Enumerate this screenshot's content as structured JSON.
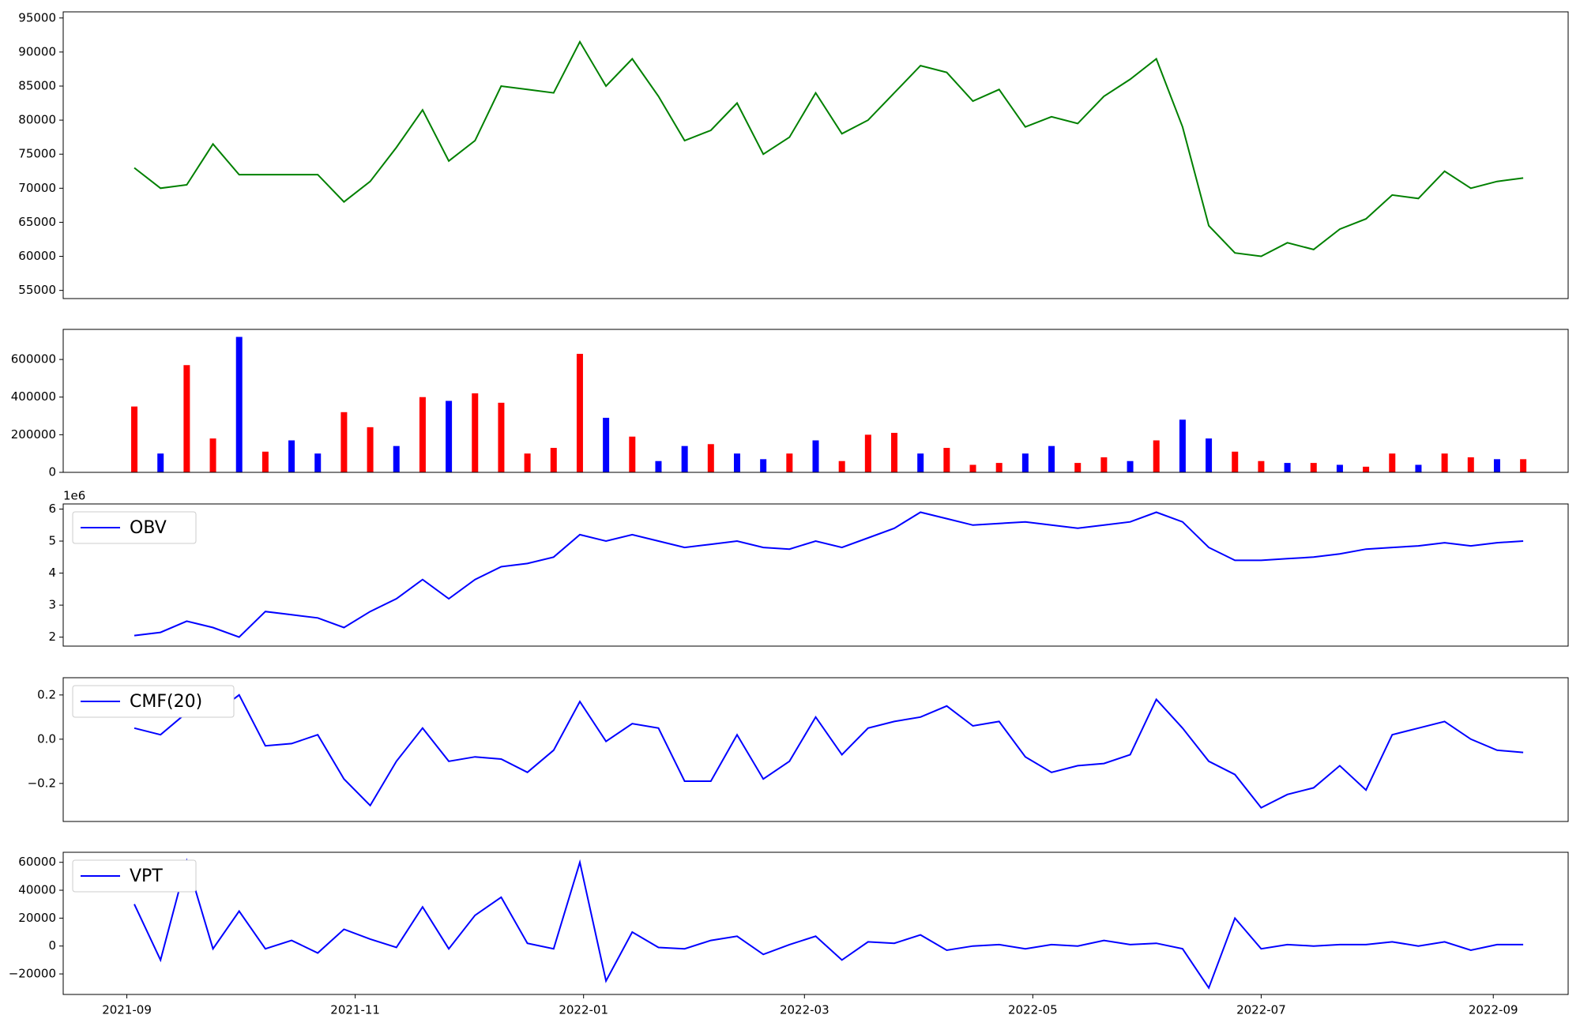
{
  "chart_data": [
    {
      "type": "line",
      "color": "#008000",
      "x": [
        "2021-09-03",
        "2021-09-10",
        "2021-09-17",
        "2021-09-24",
        "2021-10-01",
        "2021-10-08",
        "2021-10-15",
        "2021-10-22",
        "2021-10-29",
        "2021-11-05",
        "2021-11-12",
        "2021-11-19",
        "2021-11-26",
        "2021-12-03",
        "2021-12-10",
        "2021-12-17",
        "2021-12-24",
        "2021-12-31",
        "2022-01-07",
        "2022-01-14",
        "2022-01-21",
        "2022-01-28",
        "2022-02-04",
        "2022-02-11",
        "2022-02-18",
        "2022-02-25",
        "2022-03-04",
        "2022-03-11",
        "2022-03-18",
        "2022-03-25",
        "2022-04-01",
        "2022-04-08",
        "2022-04-15",
        "2022-04-22",
        "2022-04-29",
        "2022-05-06",
        "2022-05-13",
        "2022-05-20",
        "2022-05-27",
        "2022-06-03",
        "2022-06-10",
        "2022-06-17",
        "2022-06-24",
        "2022-07-01",
        "2022-07-08",
        "2022-07-15",
        "2022-07-22",
        "2022-07-29",
        "2022-08-05",
        "2022-08-12",
        "2022-08-19",
        "2022-08-26",
        "2022-09-02",
        "2022-09-09"
      ],
      "values": [
        73000,
        70000,
        70500,
        76500,
        72000,
        72000,
        72000,
        72000,
        68000,
        71000,
        76000,
        81500,
        74000,
        77000,
        85000,
        84500,
        84000,
        91500,
        85000,
        89000,
        83500,
        77000,
        78500,
        82500,
        75000,
        77500,
        84000,
        78000,
        80000,
        84000,
        88000,
        87000,
        82800,
        84500,
        79000,
        80500,
        79500,
        83500,
        86000,
        89000,
        79000,
        64500,
        60500,
        60000,
        62000,
        61000,
        64000,
        65500,
        69000,
        68500,
        72500,
        70000,
        71000,
        71500
      ],
      "xlim": [
        "2021-08-15",
        "2022-09-21"
      ],
      "ylim": [
        53800,
        95900
      ],
      "yticks": [
        55000,
        60000,
        65000,
        70000,
        75000,
        80000,
        85000,
        90000,
        95000
      ]
    },
    {
      "type": "bar",
      "x": [
        "2021-09-03",
        "2021-09-10",
        "2021-09-17",
        "2021-09-24",
        "2021-10-01",
        "2021-10-08",
        "2021-10-15",
        "2021-10-22",
        "2021-10-29",
        "2021-11-05",
        "2021-11-12",
        "2021-11-19",
        "2021-11-26",
        "2021-12-03",
        "2021-12-10",
        "2021-12-17",
        "2021-12-24",
        "2021-12-31",
        "2022-01-07",
        "2022-01-14",
        "2022-01-21",
        "2022-01-28",
        "2022-02-04",
        "2022-02-11",
        "2022-02-18",
        "2022-02-25",
        "2022-03-04",
        "2022-03-11",
        "2022-03-18",
        "2022-03-25",
        "2022-04-01",
        "2022-04-08",
        "2022-04-15",
        "2022-04-22",
        "2022-04-29",
        "2022-05-06",
        "2022-05-13",
        "2022-05-20",
        "2022-05-27",
        "2022-06-03",
        "2022-06-10",
        "2022-06-17",
        "2022-06-24",
        "2022-07-01",
        "2022-07-08",
        "2022-07-15",
        "2022-07-22",
        "2022-07-29",
        "2022-08-05",
        "2022-08-12",
        "2022-08-19",
        "2022-08-26",
        "2022-09-02",
        "2022-09-09"
      ],
      "values": [
        350000,
        100000,
        570000,
        180000,
        720000,
        110000,
        170000,
        100000,
        320000,
        240000,
        140000,
        400000,
        380000,
        420000,
        370000,
        100000,
        130000,
        630000,
        290000,
        190000,
        60000,
        140000,
        150000,
        100000,
        70000,
        100000,
        170000,
        60000,
        200000,
        210000,
        100000,
        130000,
        40000,
        50000,
        100000,
        140000,
        50000,
        80000,
        60000,
        170000,
        280000,
        180000,
        110000,
        60000,
        50000,
        50000,
        40000,
        30000,
        100000,
        40000,
        100000,
        80000,
        70000,
        70000
      ],
      "colors": [
        "red",
        "blue",
        "red",
        "red",
        "blue",
        "red",
        "blue",
        "blue",
        "red",
        "red",
        "blue",
        "red",
        "blue",
        "red",
        "red",
        "red",
        "red",
        "red",
        "blue",
        "red",
        "blue",
        "blue",
        "red",
        "blue",
        "blue",
        "red",
        "blue",
        "red",
        "red",
        "red",
        "blue",
        "red",
        "red",
        "red",
        "blue",
        "blue",
        "red",
        "red",
        "blue",
        "red",
        "blue",
        "blue",
        "red",
        "red",
        "blue",
        "red",
        "blue",
        "red",
        "red",
        "blue",
        "red",
        "red",
        "blue",
        "red"
      ],
      "xlim": [
        "2021-08-15",
        "2022-09-21"
      ],
      "ylim": [
        0,
        760000
      ],
      "yticks": [
        0,
        200000,
        400000,
        600000
      ]
    },
    {
      "type": "line",
      "legend": "upper left",
      "y_offset_label": "1e6",
      "x": [
        "2021-09-03",
        "2021-09-10",
        "2021-09-17",
        "2021-09-24",
        "2021-10-01",
        "2021-10-08",
        "2021-10-15",
        "2021-10-22",
        "2021-10-29",
        "2021-11-05",
        "2021-11-12",
        "2021-11-19",
        "2021-11-26",
        "2021-12-03",
        "2021-12-10",
        "2021-12-17",
        "2021-12-24",
        "2021-12-31",
        "2022-01-07",
        "2022-01-14",
        "2022-01-21",
        "2022-01-28",
        "2022-02-04",
        "2022-02-11",
        "2022-02-18",
        "2022-02-25",
        "2022-03-04",
        "2022-03-11",
        "2022-03-18",
        "2022-03-25",
        "2022-04-01",
        "2022-04-08",
        "2022-04-15",
        "2022-04-22",
        "2022-04-29",
        "2022-05-06",
        "2022-05-13",
        "2022-05-20",
        "2022-05-27",
        "2022-06-03",
        "2022-06-10",
        "2022-06-17",
        "2022-06-24",
        "2022-07-01",
        "2022-07-08",
        "2022-07-15",
        "2022-07-22",
        "2022-07-29",
        "2022-08-05",
        "2022-08-12",
        "2022-08-19",
        "2022-08-26",
        "2022-09-02",
        "2022-09-09"
      ],
      "series": [
        {
          "name": "OBV",
          "color": "#0000ff",
          "values": [
            2.05,
            2.15,
            2.5,
            2.3,
            2.0,
            2.8,
            2.7,
            2.6,
            2.3,
            2.8,
            3.2,
            3.8,
            3.2,
            3.8,
            4.2,
            4.3,
            4.5,
            5.2,
            5.0,
            5.2,
            5.0,
            4.8,
            4.9,
            5.0,
            4.8,
            4.75,
            5.0,
            4.8,
            5.1,
            5.4,
            5.9,
            5.7,
            5.5,
            5.55,
            5.6,
            5.5,
            5.4,
            5.5,
            5.6,
            5.9,
            5.6,
            4.8,
            4.4,
            4.4,
            4.45,
            4.5,
            4.6,
            4.75,
            4.8,
            4.85,
            4.95,
            4.85,
            4.95,
            5.0
          ]
        }
      ],
      "xlim": [
        "2021-08-15",
        "2022-09-21"
      ],
      "ylim": [
        1.72,
        6.16
      ],
      "yticks": [
        2,
        3,
        4,
        5,
        6
      ]
    },
    {
      "type": "line",
      "legend": "upper left",
      "x": [
        "2021-09-03",
        "2021-09-10",
        "2021-09-17",
        "2021-09-24",
        "2021-10-01",
        "2021-10-08",
        "2021-10-15",
        "2021-10-22",
        "2021-10-29",
        "2021-11-05",
        "2021-11-12",
        "2021-11-19",
        "2021-11-26",
        "2021-12-03",
        "2021-12-10",
        "2021-12-17",
        "2021-12-24",
        "2021-12-31",
        "2022-01-07",
        "2022-01-14",
        "2022-01-21",
        "2022-01-28",
        "2022-02-04",
        "2022-02-11",
        "2022-02-18",
        "2022-02-25",
        "2022-03-04",
        "2022-03-11",
        "2022-03-18",
        "2022-03-25",
        "2022-04-01",
        "2022-04-08",
        "2022-04-15",
        "2022-04-22",
        "2022-04-29",
        "2022-05-06",
        "2022-05-13",
        "2022-05-20",
        "2022-05-27",
        "2022-06-03",
        "2022-06-10",
        "2022-06-17",
        "2022-06-24",
        "2022-07-01",
        "2022-07-08",
        "2022-07-15",
        "2022-07-22",
        "2022-07-29",
        "2022-08-05",
        "2022-08-12",
        "2022-08-19",
        "2022-08-26",
        "2022-09-02",
        "2022-09-09"
      ],
      "series": [
        {
          "name": "CMF(20)",
          "color": "#0000ff",
          "values": [
            0.05,
            0.02,
            0.12,
            0.11,
            0.2,
            -0.03,
            -0.02,
            0.02,
            -0.18,
            -0.3,
            -0.1,
            0.05,
            -0.1,
            -0.08,
            -0.09,
            -0.15,
            -0.05,
            0.17,
            -0.01,
            0.07,
            0.05,
            -0.19,
            -0.19,
            0.02,
            -0.18,
            -0.1,
            0.1,
            -0.07,
            0.05,
            0.08,
            0.1,
            0.15,
            0.06,
            0.08,
            -0.08,
            -0.15,
            -0.12,
            -0.11,
            -0.07,
            0.18,
            0.05,
            -0.1,
            -0.16,
            -0.31,
            -0.25,
            -0.22,
            -0.12,
            -0.23,
            0.02,
            0.05,
            0.08,
            0.0,
            -0.05,
            -0.06
          ]
        }
      ],
      "xlim": [
        "2021-08-15",
        "2022-09-21"
      ],
      "ylim": [
        -0.372,
        0.278
      ],
      "yticks": [
        {
          "value": -0.2,
          "label": "−0.2"
        },
        {
          "value": 0,
          "label": "0.0"
        },
        0.2
      ]
    },
    {
      "type": "line",
      "legend": "upper left",
      "x": [
        "2021-09-03",
        "2021-09-10",
        "2021-09-17",
        "2021-09-24",
        "2021-10-01",
        "2021-10-08",
        "2021-10-15",
        "2021-10-22",
        "2021-10-29",
        "2021-11-05",
        "2021-11-12",
        "2021-11-19",
        "2021-11-26",
        "2021-12-03",
        "2021-12-10",
        "2021-12-17",
        "2021-12-24",
        "2021-12-31",
        "2022-01-07",
        "2022-01-14",
        "2022-01-21",
        "2022-01-28",
        "2022-02-04",
        "2022-02-11",
        "2022-02-18",
        "2022-02-25",
        "2022-03-04",
        "2022-03-11",
        "2022-03-18",
        "2022-03-25",
        "2022-04-01",
        "2022-04-08",
        "2022-04-15",
        "2022-04-22",
        "2022-04-29",
        "2022-05-06",
        "2022-05-13",
        "2022-05-20",
        "2022-05-27",
        "2022-06-03",
        "2022-06-10",
        "2022-06-17",
        "2022-06-24",
        "2022-07-01",
        "2022-07-08",
        "2022-07-15",
        "2022-07-22",
        "2022-07-29",
        "2022-08-05",
        "2022-08-12",
        "2022-08-19",
        "2022-08-26",
        "2022-09-02",
        "2022-09-09"
      ],
      "series": [
        {
          "name": "VPT",
          "color": "#0000ff",
          "values": [
            30000,
            -10000,
            61000,
            -2000,
            25000,
            -2000,
            4000,
            -5000,
            12000,
            5000,
            -1000,
            28000,
            -2000,
            22000,
            35000,
            2000,
            -2000,
            60000,
            -25000,
            10000,
            -1000,
            -2000,
            4000,
            7000,
            -6000,
            1000,
            7000,
            -10000,
            3000,
            2000,
            8000,
            -3000,
            0,
            1000,
            -2000,
            1000,
            0,
            4000,
            1000,
            2000,
            -2000,
            -30000,
            20000,
            -2000,
            1000,
            0,
            1000,
            1000,
            3000,
            0,
            3000,
            -3000,
            1000,
            1000
          ]
        }
      ],
      "xlim": [
        "2021-08-15",
        "2022-09-21"
      ],
      "ylim": [
        -34700,
        67200
      ],
      "yticks": [
        {
          "value": -20000,
          "label": "−20000"
        },
        0,
        20000,
        40000,
        60000
      ],
      "xticks": [
        "2021-09",
        "2021-11",
        "2022-01",
        "2022-03",
        "2022-05",
        "2022-07",
        "2022-09"
      ]
    }
  ]
}
